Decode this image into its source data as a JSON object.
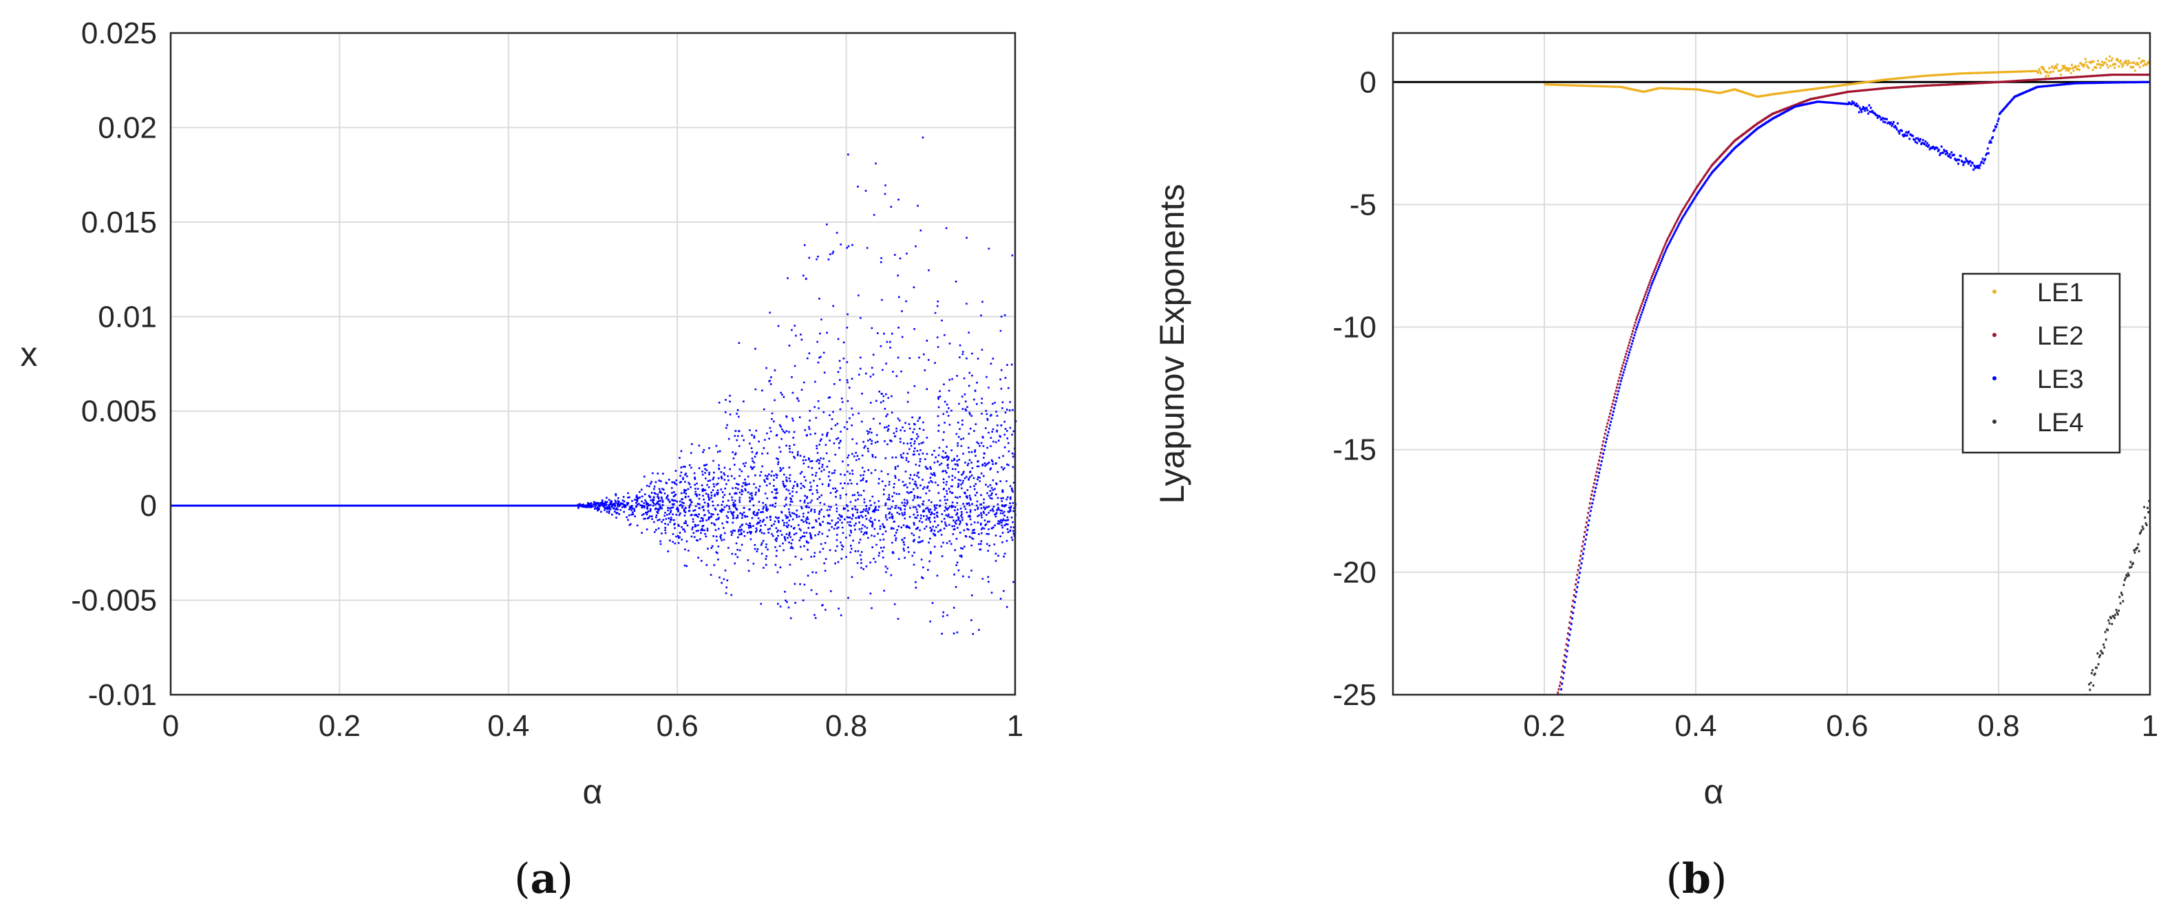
{
  "figure": {
    "panels": [
      {
        "label_open": "(",
        "label_letter": "a",
        "label_close": ")"
      },
      {
        "label_open": "(",
        "label_letter": "b",
        "label_close": ")"
      }
    ]
  },
  "chart_data": [
    {
      "type": "scatter",
      "title": "",
      "xlabel": "α",
      "ylabel": "x",
      "xlim": [
        0,
        1
      ],
      "ylim": [
        -0.01,
        0.025
      ],
      "xticks": [
        0,
        0.2,
        0.4,
        0.6,
        0.8,
        1
      ],
      "xtick_labels": [
        "0",
        "0.2",
        "0.4",
        "0.6",
        "0.8",
        "1"
      ],
      "yticks": [
        -0.01,
        -0.005,
        0,
        0.005,
        0.01,
        0.015,
        0.02,
        0.025
      ],
      "ytick_labels": [
        "-0.01",
        "-0.005",
        "0",
        "0.005",
        "0.01",
        "0.015",
        "0.02",
        "0.025"
      ],
      "grid": true,
      "color": "#0000ff",
      "series": [
        {
          "x_range": [
            0,
            1
          ],
          "description_envelope": {
            "x": [
              0,
              0.45,
              0.5,
              0.55,
              0.6,
              0.65,
              0.7,
              0.75,
              0.8,
              0.85,
              0.9,
              0.95,
              1.0
            ],
            "upper": [
              0,
              0.0,
              0.0003,
              0.0012,
              0.0045,
              0.008,
              0.011,
              0.0155,
              0.021,
              0.0225,
              0.019,
              0.016,
              0.016
            ],
            "lower": [
              0,
              0.0,
              -0.0002,
              -0.0012,
              -0.003,
              -0.0045,
              -0.0055,
              -0.0062,
              -0.006,
              -0.0058,
              -0.0068,
              -0.007,
              -0.0055
            ],
            "dense_upper": [
              0,
              0.0,
              0.0002,
              0.0008,
              0.002,
              0.0035,
              0.0055,
              0.0075,
              0.0085,
              0.008,
              0.0075,
              0.007,
              0.006
            ],
            "dense_lower": [
              0,
              0.0,
              -0.0001,
              -0.0008,
              -0.0018,
              -0.0025,
              -0.003,
              -0.0035,
              -0.0035,
              -0.0032,
              -0.003,
              -0.0028,
              -0.0025
            ]
          }
        }
      ]
    },
    {
      "type": "scatter",
      "title": "",
      "xlabel": "α",
      "ylabel": "Lyapunov Exponents",
      "xlim": [
        0,
        1
      ],
      "ylim": [
        -25,
        2
      ],
      "xticks": [
        0.2,
        0.4,
        0.6,
        0.8,
        1
      ],
      "xtick_labels": [
        "0.2",
        "0.4",
        "0.6",
        "0.8",
        "1"
      ],
      "yticks": [
        -25,
        -20,
        -15,
        -10,
        -5,
        0
      ],
      "ytick_labels": [
        "-25",
        "-20",
        "-15",
        "-10",
        "-5",
        "0"
      ],
      "grid": true,
      "legend_position": "right",
      "zero_line": true,
      "series": [
        {
          "name": "LE1",
          "color": "#edb120",
          "x": [
            0.2,
            0.25,
            0.3,
            0.33,
            0.35,
            0.4,
            0.43,
            0.45,
            0.48,
            0.5,
            0.55,
            0.6,
            0.65,
            0.7,
            0.75,
            0.8,
            0.85,
            0.9,
            0.95,
            1.0
          ],
          "y": [
            -0.1,
            -0.15,
            -0.2,
            -0.4,
            -0.25,
            -0.3,
            -0.45,
            -0.3,
            -0.6,
            -0.5,
            -0.3,
            -0.1,
            0.1,
            0.25,
            0.35,
            0.4,
            0.45,
            0.6,
            0.8,
            0.7
          ]
        },
        {
          "name": "LE2",
          "color": "#a2142f",
          "x": [
            0.2,
            0.22,
            0.24,
            0.26,
            0.28,
            0.3,
            0.32,
            0.34,
            0.36,
            0.38,
            0.4,
            0.42,
            0.45,
            0.48,
            0.5,
            0.55,
            0.6,
            0.65,
            0.7,
            0.75,
            0.8,
            0.85,
            0.9,
            0.95,
            1.0
          ],
          "y": [
            -27,
            -24.5,
            -20.5,
            -17,
            -14.2,
            -11.8,
            -9.7,
            -8.0,
            -6.5,
            -5.3,
            -4.3,
            -3.4,
            -2.4,
            -1.7,
            -1.3,
            -0.7,
            -0.4,
            -0.25,
            -0.15,
            -0.08,
            0.0,
            0.1,
            0.2,
            0.3,
            0.3
          ]
        },
        {
          "name": "LE3",
          "color": "#0000ff",
          "x": [
            0.22,
            0.24,
            0.26,
            0.28,
            0.3,
            0.32,
            0.34,
            0.36,
            0.38,
            0.4,
            0.42,
            0.45,
            0.48,
            0.5,
            0.53,
            0.56,
            0.6,
            0.63,
            0.66,
            0.69,
            0.72,
            0.75,
            0.77,
            0.78,
            0.79,
            0.8,
            0.82,
            0.85,
            0.9,
            0.95,
            1.0
          ],
          "y": [
            -25,
            -21,
            -17.5,
            -14.7,
            -12.2,
            -10.1,
            -8.3,
            -6.8,
            -5.6,
            -4.6,
            -3.7,
            -2.7,
            -1.9,
            -1.5,
            -1.0,
            -0.8,
            -0.9,
            -1.2,
            -1.8,
            -2.4,
            -2.8,
            -3.2,
            -3.5,
            -3.2,
            -2.3,
            -1.3,
            -0.6,
            -0.2,
            -0.05,
            -0.02,
            0.0
          ]
        },
        {
          "name": "LE4",
          "color": "#333333",
          "x": [
            0.915,
            0.93,
            0.945,
            0.96,
            0.975,
            0.99,
            1.0
          ],
          "y": [
            -25,
            -23.8,
            -22.3,
            -21.0,
            -19.6,
            -18.0,
            -16.8
          ]
        }
      ]
    }
  ]
}
